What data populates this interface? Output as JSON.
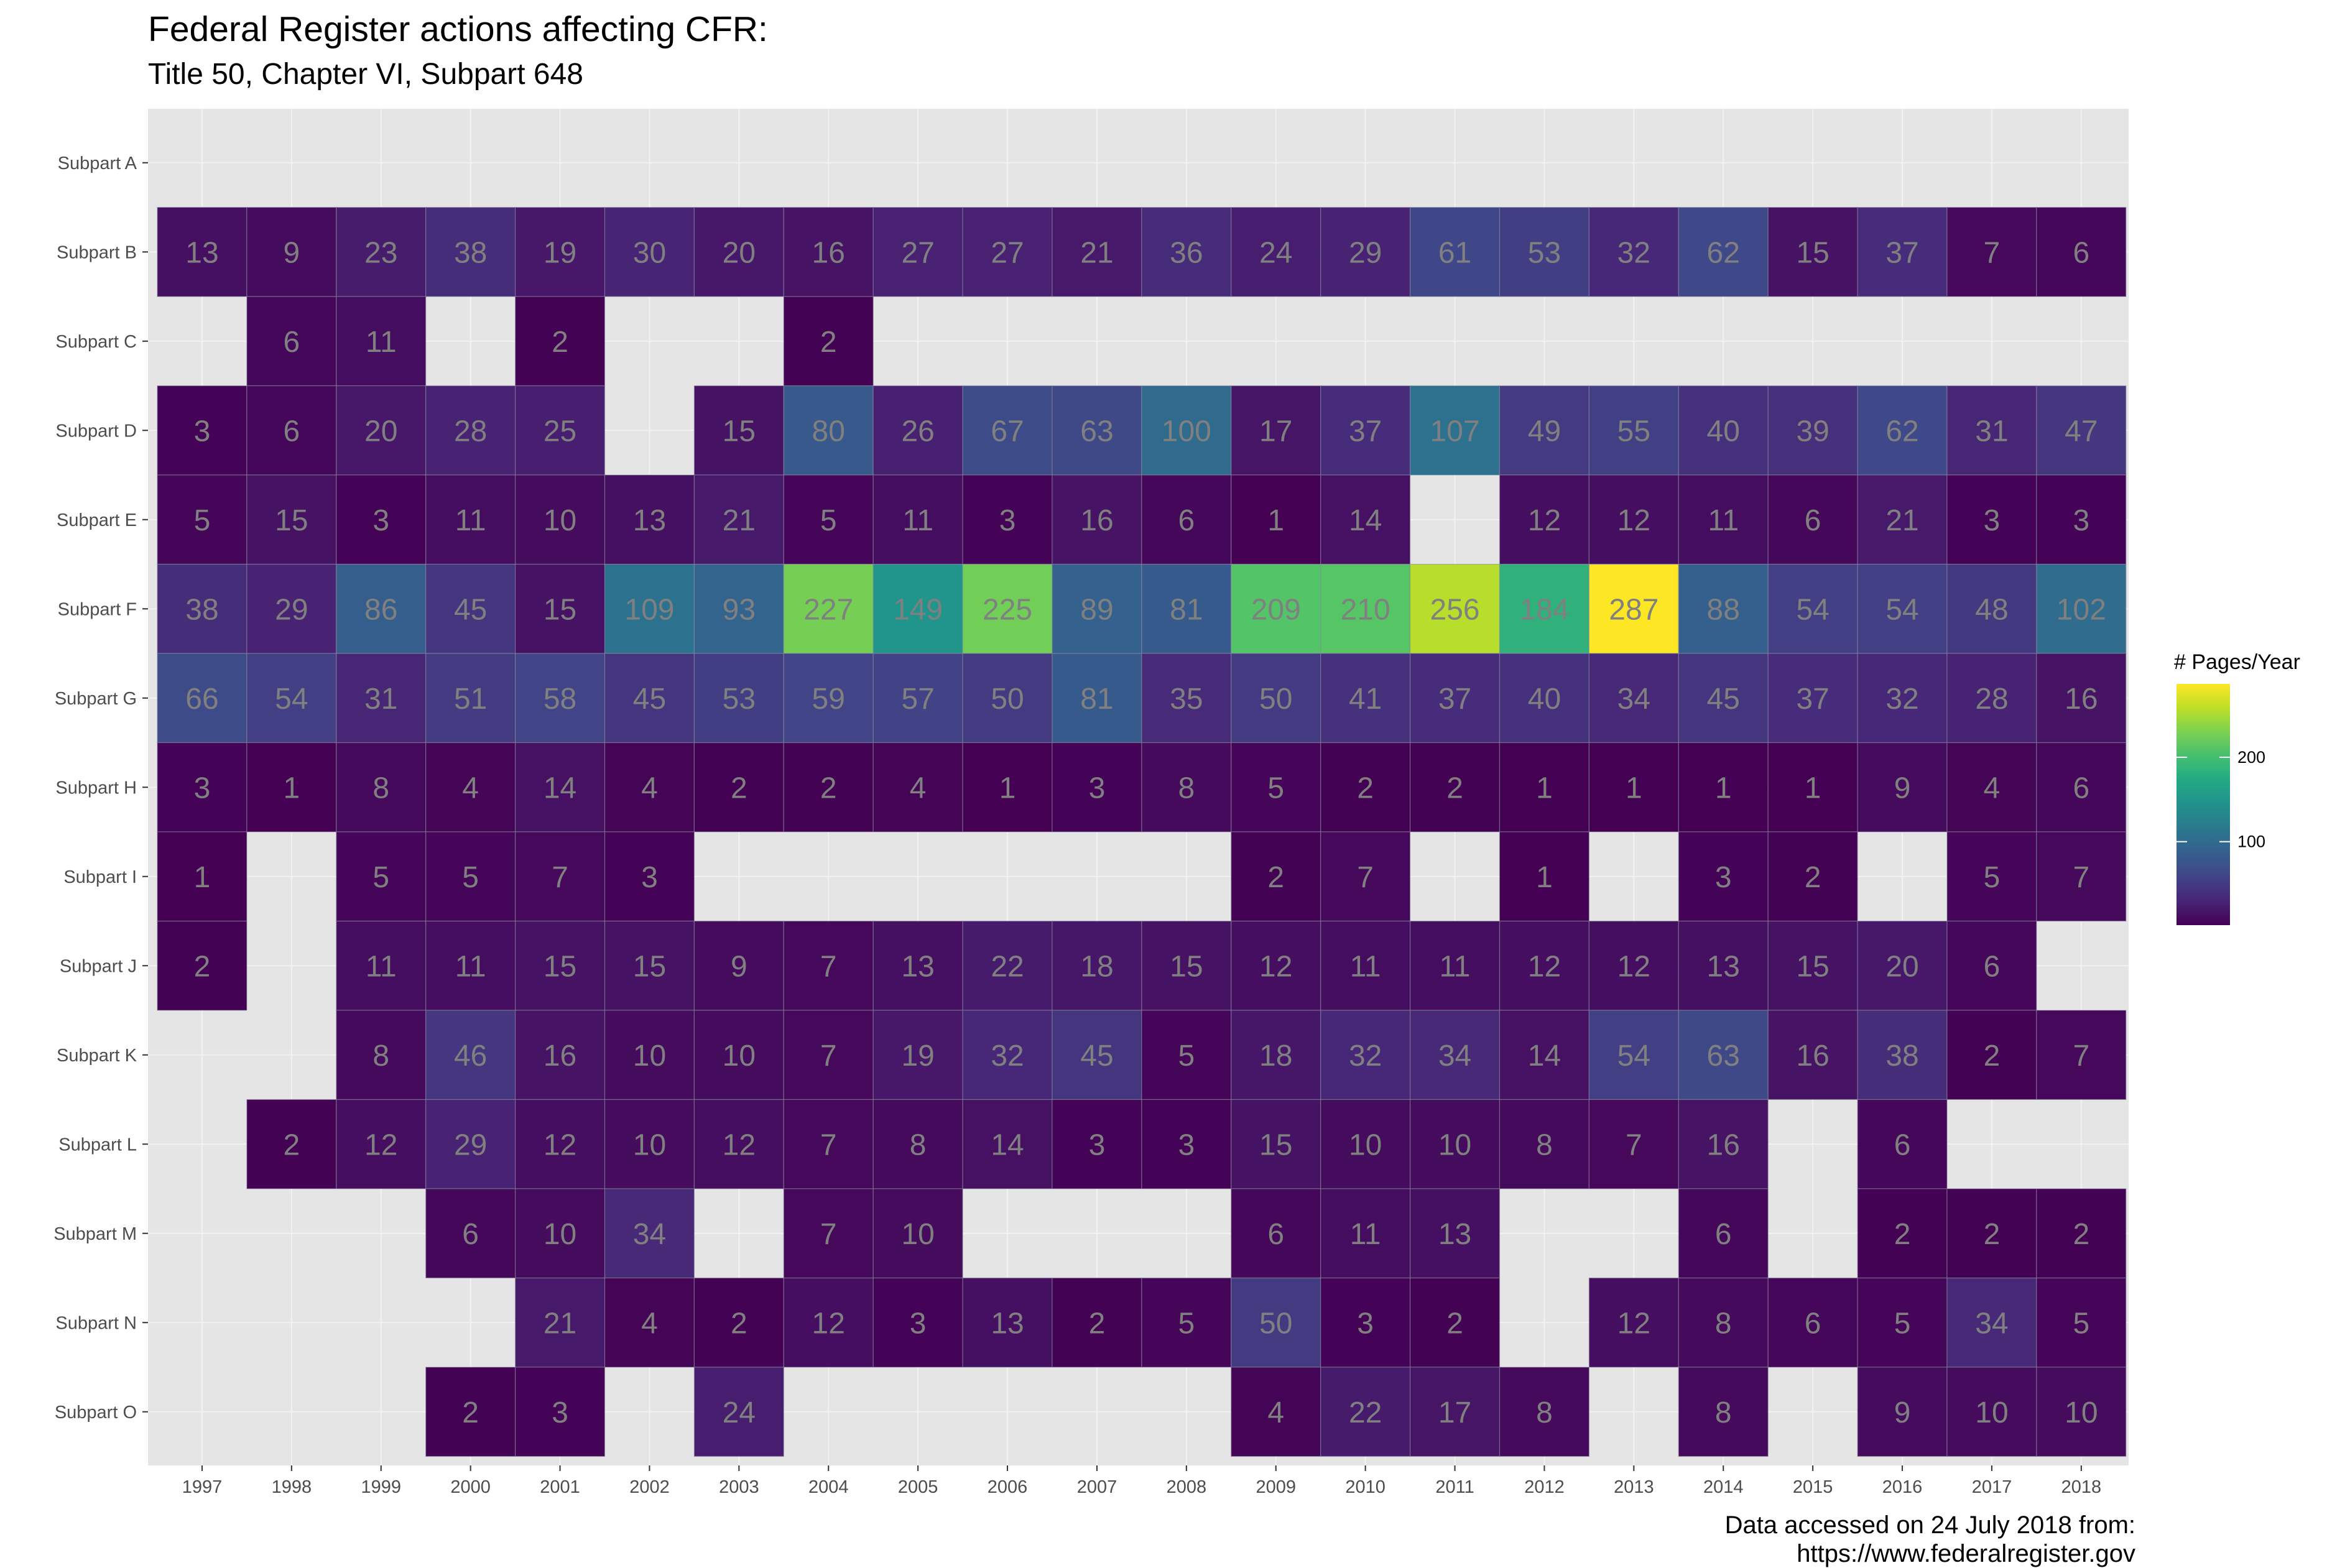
{
  "title": "Federal Register actions affecting CFR:",
  "subtitle": "Title 50, Chapter VI, Subpart 648",
  "caption": [
    "Data accessed on 24 July 2018 from:",
    "https://www.federalregister.gov"
  ],
  "colors": {
    "panel_bg": "#e5e5e5",
    "grid": "#f2f2f2",
    "value_text": "#808080",
    "palette": "viridis"
  },
  "chart_data": {
    "type": "heatmap",
    "title": "Federal Register actions affecting CFR:",
    "subtitle": "Title 50, Chapter VI, Subpart 648",
    "x": [
      "1997",
      "1998",
      "1999",
      "2000",
      "2001",
      "2002",
      "2003",
      "2004",
      "2005",
      "2006",
      "2007",
      "2008",
      "2009",
      "2010",
      "2011",
      "2012",
      "2013",
      "2014",
      "2015",
      "2016",
      "2017",
      "2018"
    ],
    "y": [
      "Subpart A",
      "Subpart B",
      "Subpart C",
      "Subpart D",
      "Subpart E",
      "Subpart F",
      "Subpart G",
      "Subpart H",
      "Subpart I",
      "Subpart J",
      "Subpart K",
      "Subpart L",
      "Subpart M",
      "Subpart N",
      "Subpart O"
    ],
    "values": [
      [
        null,
        null,
        null,
        null,
        null,
        null,
        null,
        null,
        null,
        null,
        null,
        null,
        null,
        null,
        null,
        null,
        null,
        null,
        null,
        null,
        null,
        null
      ],
      [
        13,
        9,
        23,
        38,
        19,
        30,
        20,
        16,
        27,
        27,
        21,
        36,
        24,
        29,
        61,
        53,
        32,
        62,
        15,
        37,
        7,
        6
      ],
      [
        null,
        6,
        11,
        null,
        2,
        null,
        null,
        2,
        null,
        null,
        null,
        null,
        null,
        null,
        null,
        null,
        null,
        null,
        null,
        null,
        null,
        null
      ],
      [
        3,
        6,
        20,
        28,
        25,
        null,
        15,
        80,
        26,
        67,
        63,
        100,
        17,
        37,
        107,
        49,
        55,
        40,
        39,
        62,
        31,
        47
      ],
      [
        5,
        15,
        3,
        11,
        10,
        13,
        21,
        5,
        11,
        3,
        16,
        6,
        1,
        14,
        null,
        12,
        12,
        11,
        6,
        21,
        3,
        3
      ],
      [
        38,
        29,
        86,
        45,
        15,
        109,
        93,
        227,
        149,
        225,
        89,
        81,
        209,
        210,
        256,
        184,
        287,
        88,
        54,
        54,
        48,
        102
      ],
      [
        66,
        54,
        31,
        51,
        58,
        45,
        53,
        59,
        57,
        50,
        81,
        35,
        50,
        41,
        37,
        40,
        34,
        45,
        37,
        32,
        28,
        16
      ],
      [
        3,
        1,
        8,
        4,
        14,
        4,
        2,
        2,
        4,
        1,
        3,
        8,
        5,
        2,
        2,
        1,
        1,
        1,
        1,
        9,
        4,
        6
      ],
      [
        1,
        null,
        5,
        5,
        7,
        3,
        null,
        null,
        null,
        null,
        null,
        null,
        2,
        7,
        null,
        1,
        null,
        3,
        2,
        null,
        5,
        7
      ],
      [
        2,
        null,
        11,
        11,
        15,
        15,
        9,
        7,
        13,
        22,
        18,
        15,
        12,
        11,
        11,
        12,
        12,
        13,
        15,
        20,
        6,
        null
      ],
      [
        null,
        null,
        8,
        46,
        16,
        10,
        10,
        7,
        19,
        32,
        45,
        5,
        18,
        32,
        34,
        14,
        54,
        63,
        16,
        38,
        2,
        7
      ],
      [
        null,
        2,
        12,
        29,
        12,
        10,
        12,
        7,
        8,
        14,
        3,
        3,
        15,
        10,
        10,
        8,
        7,
        16,
        null,
        6,
        null,
        null
      ],
      [
        null,
        null,
        null,
        6,
        10,
        34,
        null,
        7,
        10,
        null,
        null,
        null,
        6,
        11,
        13,
        null,
        null,
        6,
        null,
        2,
        2,
        2
      ],
      [
        null,
        null,
        null,
        null,
        21,
        4,
        2,
        12,
        3,
        13,
        2,
        5,
        50,
        3,
        2,
        null,
        12,
        8,
        6,
        5,
        34,
        5
      ],
      [
        null,
        null,
        null,
        2,
        3,
        null,
        24,
        null,
        null,
        null,
        null,
        null,
        4,
        22,
        17,
        8,
        null,
        8,
        null,
        9,
        10,
        10
      ]
    ],
    "legend": {
      "title": "# Pages/Year",
      "ticks": [
        "100",
        "200"
      ],
      "tick_values": [
        100,
        200
      ],
      "range": [
        1,
        287
      ],
      "placement": "right"
    },
    "grid": true
  }
}
